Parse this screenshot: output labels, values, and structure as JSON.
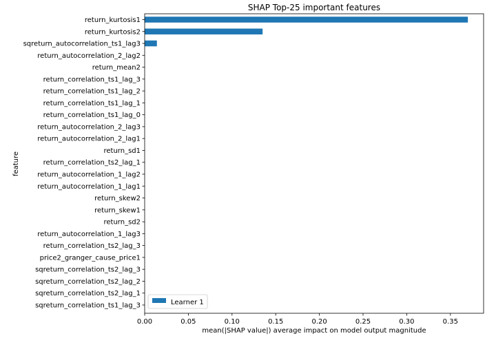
{
  "chart_data": {
    "type": "bar",
    "orientation": "horizontal",
    "title": "SHAP Top-25 important features",
    "xlabel": "mean(|SHAP value|) average impact on model output magnitude",
    "ylabel": "feature",
    "xlim": [
      0,
      0.388
    ],
    "xticks": [
      0.0,
      0.05,
      0.1,
      0.15,
      0.2,
      0.25,
      0.3,
      0.35
    ],
    "xtick_labels": [
      "0.00",
      "0.05",
      "0.10",
      "0.15",
      "0.20",
      "0.25",
      "0.30",
      "0.35"
    ],
    "grid": false,
    "legend_position": "lower-left",
    "bar_color": "#1f77b4",
    "categories": [
      "return_kurtosis1",
      "return_kurtosis2",
      "sqreturn_autocorrelation_ts1_lag3",
      "return_autocorrelation_2_lag2",
      "return_mean2",
      "return_correlation_ts1_lag_3",
      "return_correlation_ts1_lag_2",
      "return_correlation_ts1_lag_1",
      "return_correlation_ts1_lag_0",
      "return_autocorrelation_2_lag3",
      "return_autocorrelation_2_lag1",
      "return_sd1",
      "return_correlation_ts2_lag_1",
      "return_autocorrelation_1_lag2",
      "return_autocorrelation_1_lag1",
      "return_skew2",
      "return_skew1",
      "return_sd2",
      "return_autocorrelation_1_lag3",
      "return_correlation_ts2_lag_3",
      "price2_granger_cause_price1",
      "sqreturn_correlation_ts2_lag_3",
      "sqreturn_correlation_ts2_lag_2",
      "sqreturn_correlation_ts2_lag_1",
      "sqreturn_correlation_ts1_lag_3"
    ],
    "series": [
      {
        "name": "Learner 1",
        "values": [
          0.37,
          0.135,
          0.014,
          0,
          0,
          0,
          0,
          0,
          0,
          0,
          0,
          0,
          0,
          0,
          0,
          0,
          0,
          0,
          0,
          0,
          0,
          0,
          0,
          0,
          0
        ]
      }
    ]
  }
}
